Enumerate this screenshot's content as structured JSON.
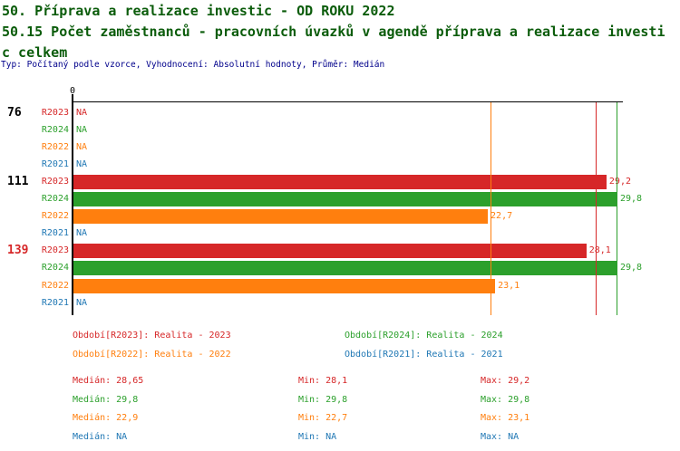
{
  "title": {
    "line1": "50. Příprava a realizace investic - OD ROKU 2022",
    "line2": "50.15 Počet zaměstnanců - pracovních úvazků v agendě příprava a realizace investi",
    "line3": "c celkem",
    "meta": "Typ: Počítaný podle vzorce, Vyhodnocení: Absolutní hodnoty, Průměr: Medián"
  },
  "colors": {
    "title": "#0b5c0b",
    "meta": "#00008b",
    "axis": "#000000"
  },
  "chart_data": {
    "type": "bar",
    "orientation": "horizontal",
    "axis": {
      "tick_label": "0",
      "x_range": [
        0,
        29.8
      ]
    },
    "na_text": "NA",
    "series_colors": {
      "R2023": "#d62728",
      "R2024": "#2ca02c",
      "R2022": "#ff7f0e",
      "R2021": "#1f77b4"
    },
    "groups": [
      {
        "label": "76",
        "label_color": "#000000",
        "rows": [
          {
            "period": "R2023",
            "value": null,
            "display": "NA"
          },
          {
            "period": "R2024",
            "value": null,
            "display": "NA"
          },
          {
            "period": "R2022",
            "value": null,
            "display": "NA"
          },
          {
            "period": "R2021",
            "value": null,
            "display": "NA"
          }
        ]
      },
      {
        "label": "111",
        "label_color": "#000000",
        "rows": [
          {
            "period": "R2023",
            "value": 29.2,
            "display": "29,2"
          },
          {
            "period": "R2024",
            "value": 29.8,
            "display": "29,8"
          },
          {
            "period": "R2022",
            "value": 22.7,
            "display": "22,7"
          },
          {
            "period": "R2021",
            "value": null,
            "display": "NA"
          }
        ]
      },
      {
        "label": "139",
        "label_color": "#d62728",
        "rows": [
          {
            "period": "R2023",
            "value": 28.1,
            "display": "28,1"
          },
          {
            "period": "R2024",
            "value": 29.8,
            "display": "29,8"
          },
          {
            "period": "R2022",
            "value": 23.1,
            "display": "23,1"
          },
          {
            "period": "R2021",
            "value": null,
            "display": "NA"
          }
        ]
      }
    ],
    "median_lines": [
      {
        "series": "R2022",
        "value": 22.9
      },
      {
        "series": "R2023",
        "value": 28.65
      },
      {
        "series": "R2024",
        "value": 29.8
      }
    ]
  },
  "legend": [
    {
      "series": "R2023",
      "label": "Období[R2023]: Realita - 2023"
    },
    {
      "series": "R2024",
      "label": "Období[R2024]: Realita - 2024"
    },
    {
      "series": "R2022",
      "label": "Období[R2022]: Realita - 2022"
    },
    {
      "series": "R2021",
      "label": "Období[R2021]: Realita - 2021"
    }
  ],
  "stats_labels": {
    "median": "Medián",
    "min": "Min",
    "max": "Max"
  },
  "stats": [
    {
      "series": "R2023",
      "median": "28,65",
      "min": "28,1",
      "max": "29,2"
    },
    {
      "series": "R2024",
      "median": "29,8",
      "min": "29,8",
      "max": "29,8"
    },
    {
      "series": "R2022",
      "median": "22,9",
      "min": "22,7",
      "max": "23,1"
    },
    {
      "series": "R2021",
      "median": "NA",
      "min": "NA",
      "max": "NA"
    }
  ]
}
